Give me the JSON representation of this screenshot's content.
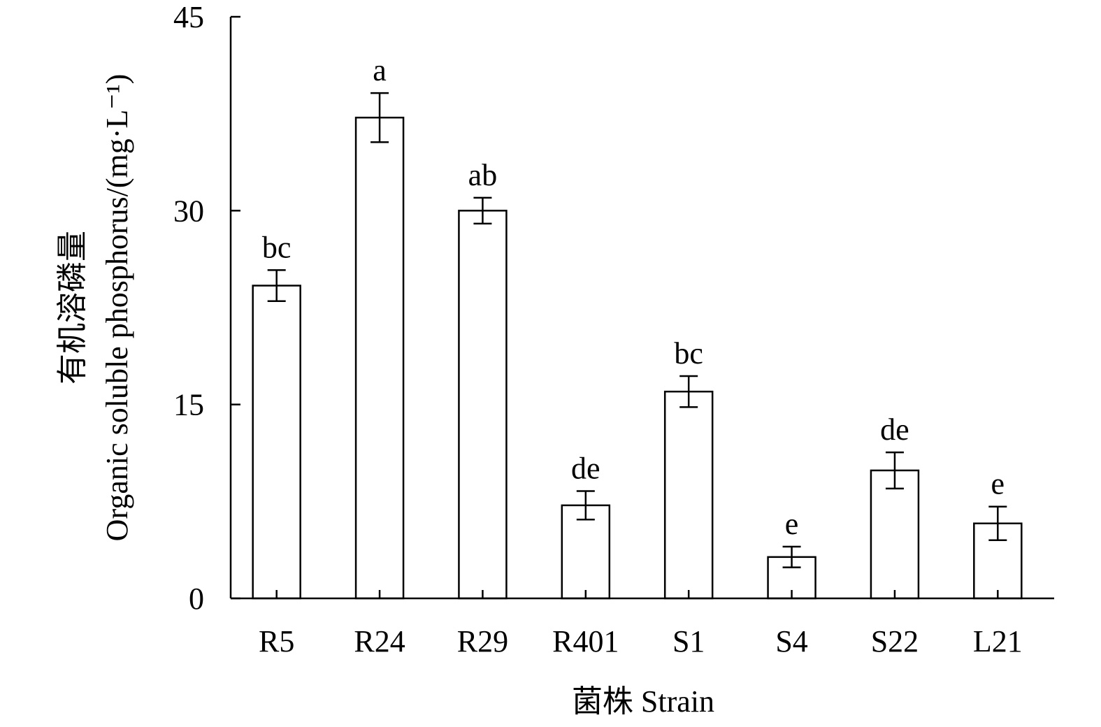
{
  "chart_data": {
    "type": "bar",
    "categories": [
      "R5",
      "R24",
      "R29",
      "R401",
      "S1",
      "S4",
      "S22",
      "L21"
    ],
    "values": [
      24.2,
      37.2,
      30.0,
      7.2,
      16.0,
      3.2,
      9.9,
      5.8
    ],
    "errors": [
      1.2,
      1.9,
      1.0,
      1.1,
      1.2,
      0.8,
      1.4,
      1.3
    ],
    "significance": [
      "bc",
      "a",
      "ab",
      "de",
      "bc",
      "e",
      "de",
      "e"
    ],
    "ylim": [
      0,
      45
    ],
    "yticks": [
      0,
      15,
      30,
      45
    ],
    "xlabel": "菌株 Strain",
    "ylabel_cn": "有机溶磷量",
    "ylabel_en": "Organic soluble phosphorus/(mg·L⁻¹)",
    "grid": false,
    "bar_color": "#ffffff",
    "edge_color": "#000000"
  }
}
